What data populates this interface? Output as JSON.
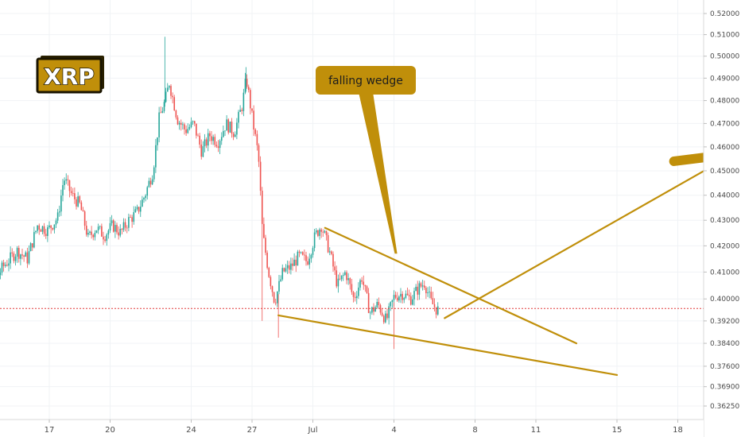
{
  "chart_data": {
    "type": "candlestick",
    "symbol_badge": "XRP",
    "x_tick_labels": [
      "17",
      "20",
      "24",
      "27",
      "Jul",
      "4",
      "8",
      "11",
      "15",
      "18"
    ],
    "y_tick_labels": [
      "0.52000",
      "0.51000",
      "0.50000",
      "0.49000",
      "0.48000",
      "0.47000",
      "0.46000",
      "0.45000",
      "0.44000",
      "0.43000",
      "0.42000",
      "0.41000",
      "0.40000",
      "0.39200",
      "0.38400",
      "0.37600",
      "0.36900",
      "0.36250"
    ],
    "y_tick_values": [
      0.52,
      0.51,
      0.5,
      0.49,
      0.48,
      0.47,
      0.46,
      0.45,
      0.44,
      0.43,
      0.42,
      0.41,
      0.4,
      0.392,
      0.384,
      0.376,
      0.369,
      0.3625
    ],
    "y_axis_scale": "log",
    "grid": true,
    "current_price_line": 0.3965,
    "price_path": [
      [
        13.0,
        0.394
      ],
      [
        13.6,
        0.406
      ],
      [
        14.2,
        0.404
      ],
      [
        14.8,
        0.412
      ],
      [
        15.5,
        0.418
      ],
      [
        16.0,
        0.415
      ],
      [
        16.5,
        0.428
      ],
      [
        17.0,
        0.426
      ],
      [
        17.5,
        0.431
      ],
      [
        17.8,
        0.447
      ],
      [
        18.2,
        0.44
      ],
      [
        18.6,
        0.436
      ],
      [
        19.0,
        0.423
      ],
      [
        19.4,
        0.427
      ],
      [
        19.8,
        0.424
      ],
      [
        20.2,
        0.428
      ],
      [
        20.6,
        0.425
      ],
      [
        21.0,
        0.43
      ],
      [
        21.4,
        0.433
      ],
      [
        21.8,
        0.44
      ],
      [
        22.2,
        0.45
      ],
      [
        22.5,
        0.472
      ],
      [
        22.8,
        0.48
      ],
      [
        23.0,
        0.488
      ],
      [
        23.4,
        0.472
      ],
      [
        23.8,
        0.467
      ],
      [
        24.2,
        0.47
      ],
      [
        24.6,
        0.458
      ],
      [
        25.0,
        0.465
      ],
      [
        25.4,
        0.462
      ],
      [
        25.8,
        0.47
      ],
      [
        26.2,
        0.466
      ],
      [
        26.6,
        0.478
      ],
      [
        26.8,
        0.49
      ],
      [
        27.1,
        0.472
      ],
      [
        27.4,
        0.456
      ],
      [
        27.6,
        0.425
      ],
      [
        27.9,
        0.41
      ],
      [
        28.2,
        0.399
      ],
      [
        28.6,
        0.41
      ],
      [
        29.0,
        0.412
      ],
      [
        29.4,
        0.416
      ],
      [
        29.8,
        0.414
      ],
      [
        30.2,
        0.424
      ],
      [
        30.5,
        0.428
      ],
      [
        30.9,
        0.418
      ],
      [
        31.3,
        0.405
      ],
      [
        31.7,
        0.41
      ],
      [
        32.1,
        0.4
      ],
      [
        32.5,
        0.408
      ],
      [
        32.9,
        0.395
      ],
      [
        33.3,
        0.398
      ],
      [
        33.7,
        0.392
      ],
      [
        34.1,
        0.401
      ],
      [
        34.5,
        0.402
      ],
      [
        34.9,
        0.4
      ],
      [
        35.3,
        0.404
      ],
      [
        35.6,
        0.406
      ],
      [
        35.9,
        0.399
      ],
      [
        36.2,
        0.396
      ]
    ],
    "wedge_upper_line": [
      [
        30.6,
        0.427
      ],
      [
        43.0,
        0.384
      ]
    ],
    "wedge_lower_line": [
      [
        28.3,
        0.394
      ],
      [
        45.0,
        0.373
      ]
    ],
    "breakout_arrow": [
      [
        36.5,
        0.393
      ],
      [
        49.3,
        0.45
      ]
    ],
    "annotations": [
      {
        "text": "falling wedge",
        "anchor": [
          34.1,
          0.417
        ]
      }
    ]
  }
}
